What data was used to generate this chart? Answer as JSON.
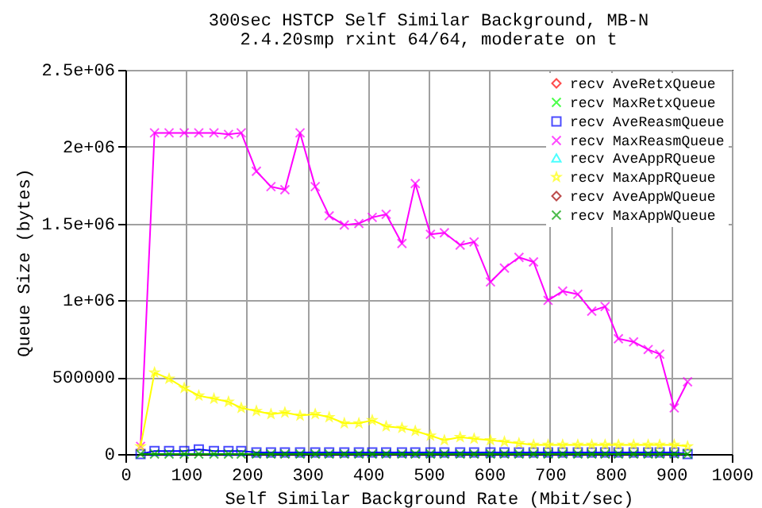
{
  "chart_data": {
    "type": "line",
    "title": "300sec  HSTCP  Self Similar Background, MB-N",
    "subtitle": "2.4.20smp rxint 64/64, moderate on t",
    "xlabel": "Self Similar Background Rate (Mbit/sec)",
    "ylabel": "Queue Size (bytes)",
    "x": [
      25,
      48,
      72,
      97,
      121,
      146,
      170,
      191,
      216,
      240,
      263,
      288,
      313,
      336,
      361,
      385,
      407,
      430,
      456,
      478,
      503,
      526,
      552,
      575,
      602,
      625,
      649,
      673,
      697,
      721,
      746,
      769,
      791,
      813,
      838,
      862,
      881,
      905,
      927
    ],
    "series": [
      {
        "name": "recv AveRetxQueue",
        "color": "#ff0000",
        "marker": "diamond",
        "values": [
          null,
          null,
          null,
          null,
          null,
          null,
          null,
          null,
          null,
          null,
          null,
          null,
          null,
          null,
          null,
          null,
          null,
          null,
          null,
          null,
          null,
          null,
          null,
          null,
          null,
          null,
          null,
          null,
          null,
          null,
          null,
          null,
          null,
          null,
          null,
          null,
          null,
          null,
          null
        ]
      },
      {
        "name": "recv MaxRetxQueue",
        "color": "#00ff00",
        "marker": "cross",
        "values": [
          null,
          null,
          null,
          null,
          null,
          null,
          null,
          null,
          null,
          null,
          null,
          null,
          null,
          null,
          null,
          null,
          null,
          null,
          null,
          null,
          null,
          null,
          null,
          null,
          null,
          null,
          null,
          null,
          null,
          null,
          null,
          null,
          null,
          null,
          null,
          null,
          null,
          null,
          null
        ]
      },
      {
        "name": "recv AveReasmQueue",
        "color": "#0000ff",
        "marker": "square",
        "values": [
          0,
          20000,
          20000,
          20000,
          30000,
          20000,
          20000,
          20000,
          10000,
          10000,
          10000,
          10000,
          10000,
          10000,
          10000,
          10000,
          10000,
          10000,
          10000,
          10000,
          10000,
          10000,
          10000,
          10000,
          10000,
          10000,
          10000,
          10000,
          10000,
          10000,
          10000,
          10000,
          10000,
          10000,
          10000,
          10000,
          10000,
          10000,
          0
        ]
      },
      {
        "name": "recv MaxReasmQueue",
        "color": "#ff00ff",
        "marker": "cross",
        "values": [
          50000,
          2090000,
          2090000,
          2090000,
          2090000,
          2090000,
          2080000,
          2090000,
          1840000,
          1740000,
          1720000,
          2090000,
          1740000,
          1550000,
          1490000,
          1500000,
          1540000,
          1560000,
          1370000,
          1760000,
          1430000,
          1440000,
          1360000,
          1380000,
          1120000,
          1210000,
          1280000,
          1250000,
          1000000,
          1060000,
          1040000,
          930000,
          960000,
          750000,
          730000,
          680000,
          650000,
          300000,
          470000
        ]
      },
      {
        "name": "recv AveAppRQueue",
        "color": "#00ffff",
        "marker": "triangle",
        "values": [
          null,
          null,
          null,
          null,
          null,
          null,
          null,
          null,
          null,
          null,
          null,
          null,
          null,
          null,
          null,
          null,
          null,
          null,
          null,
          null,
          null,
          null,
          null,
          null,
          null,
          null,
          null,
          null,
          null,
          null,
          null,
          null,
          null,
          null,
          null,
          null,
          null,
          null,
          null
        ]
      },
      {
        "name": "recv MaxAppRQueue",
        "color": "#ffff00",
        "marker": "star",
        "values": [
          50000,
          530000,
          490000,
          430000,
          380000,
          360000,
          340000,
          300000,
          280000,
          260000,
          270000,
          250000,
          260000,
          240000,
          200000,
          200000,
          220000,
          180000,
          170000,
          150000,
          120000,
          90000,
          110000,
          100000,
          90000,
          80000,
          70000,
          60000,
          60000,
          60000,
          60000,
          60000,
          60000,
          60000,
          60000,
          60000,
          60000,
          60000,
          50000
        ]
      },
      {
        "name": "recv AveAppWQueue",
        "color": "#a00000",
        "marker": "diamond",
        "values": [
          null,
          null,
          null,
          null,
          null,
          null,
          null,
          null,
          null,
          null,
          null,
          null,
          null,
          null,
          null,
          null,
          null,
          null,
          null,
          null,
          null,
          null,
          null,
          null,
          null,
          null,
          null,
          null,
          null,
          null,
          null,
          null,
          null,
          null,
          null,
          null,
          null,
          null,
          null
        ]
      },
      {
        "name": "recv MaxAppWQueue",
        "color": "#00a000",
        "marker": "cross",
        "values": [
          0,
          0,
          0,
          0,
          0,
          0,
          0,
          0,
          0,
          0,
          0,
          0,
          0,
          0,
          0,
          0,
          0,
          0,
          0,
          0,
          0,
          0,
          0,
          0,
          0,
          0,
          0,
          0,
          0,
          0,
          0,
          0,
          0,
          0,
          0,
          0,
          0,
          0,
          0
        ]
      }
    ],
    "xlim": [
      0,
      1000
    ],
    "xticks": [
      0,
      100,
      200,
      300,
      400,
      500,
      600,
      700,
      800,
      900,
      1000
    ],
    "ylim": [
      0,
      2500000
    ],
    "yticks": [
      0,
      500000,
      {
        "value": 1000000,
        "label": "1e+06"
      },
      {
        "value": 1500000,
        "label": "1.5e+06"
      },
      {
        "value": 2000000,
        "label": "2e+06"
      },
      {
        "value": 2500000,
        "label": "2.5e+06"
      }
    ],
    "grid": true,
    "legend": "top right",
    "line_style": "solid"
  }
}
